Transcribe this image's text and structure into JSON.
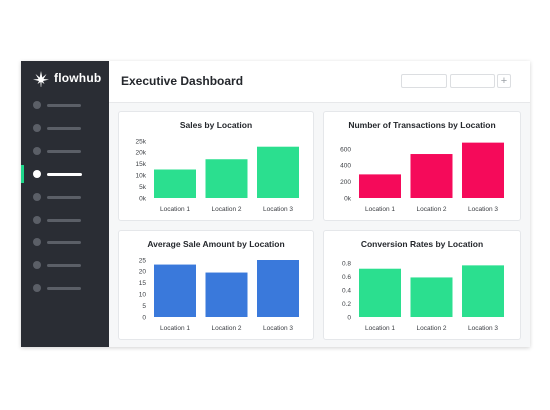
{
  "brand": {
    "name": "flowhub",
    "accent": "#1ed68a"
  },
  "sidebar": {
    "items": [
      {
        "icon": "nav-dot-icon",
        "active": false
      },
      {
        "icon": "nav-dot-icon",
        "active": false
      },
      {
        "icon": "nav-dot-icon",
        "active": false
      },
      {
        "icon": "nav-dot-icon",
        "active": true
      },
      {
        "icon": "nav-dot-icon",
        "active": false
      },
      {
        "icon": "nav-dot-icon",
        "active": false
      },
      {
        "icon": "nav-dot-icon",
        "active": false
      },
      {
        "icon": "nav-dot-icon",
        "active": false
      },
      {
        "icon": "nav-dot-icon",
        "active": false
      }
    ]
  },
  "header": {
    "title": "Executive Dashboard",
    "add_icon": "+"
  },
  "chart_data": [
    {
      "type": "bar",
      "title": "Sales by Location",
      "categories": [
        "Location 1",
        "Location 2",
        "Location 3"
      ],
      "values": [
        12500,
        17000,
        22500
      ],
      "yticks": [
        0,
        5000,
        10000,
        15000,
        20000,
        25000
      ],
      "ytick_labels": [
        "0k",
        "5k",
        "10k",
        "15k",
        "20k",
        "25k"
      ],
      "ylim": [
        0,
        25000
      ],
      "color": "#2bdf8f"
    },
    {
      "type": "bar",
      "title": "Number of Transactions by Location",
      "categories": [
        "Location 1",
        "Location 2",
        "Location 3"
      ],
      "values": [
        290,
        540,
        680
      ],
      "yticks": [
        0,
        200,
        400,
        600
      ],
      "ytick_labels": [
        "0k",
        "200",
        "400",
        "600"
      ],
      "ylim": [
        0,
        700
      ],
      "color": "#f50a5a"
    },
    {
      "type": "bar",
      "title": "Average Sale Amount by Location",
      "categories": [
        "Location 1",
        "Location 2",
        "Location 3"
      ],
      "values": [
        23,
        19.5,
        25
      ],
      "yticks": [
        0,
        5,
        10,
        15,
        20,
        25
      ],
      "ytick_labels": [
        "0",
        "5",
        "10",
        "15",
        "20",
        "25"
      ],
      "ylim": [
        0,
        25
      ],
      "color": "#3a79db"
    },
    {
      "type": "bar",
      "title": "Conversion Rates by Location",
      "categories": [
        "Location 1",
        "Location 2",
        "Location 3"
      ],
      "values": [
        0.72,
        0.59,
        0.77
      ],
      "yticks": [
        0,
        0.2,
        0.4,
        0.6,
        0.8
      ],
      "ytick_labels": [
        "0",
        "0.2",
        "0.4",
        "0.6",
        "0.8"
      ],
      "ylim": [
        0,
        0.85
      ],
      "color": "#2bdf8f"
    }
  ]
}
